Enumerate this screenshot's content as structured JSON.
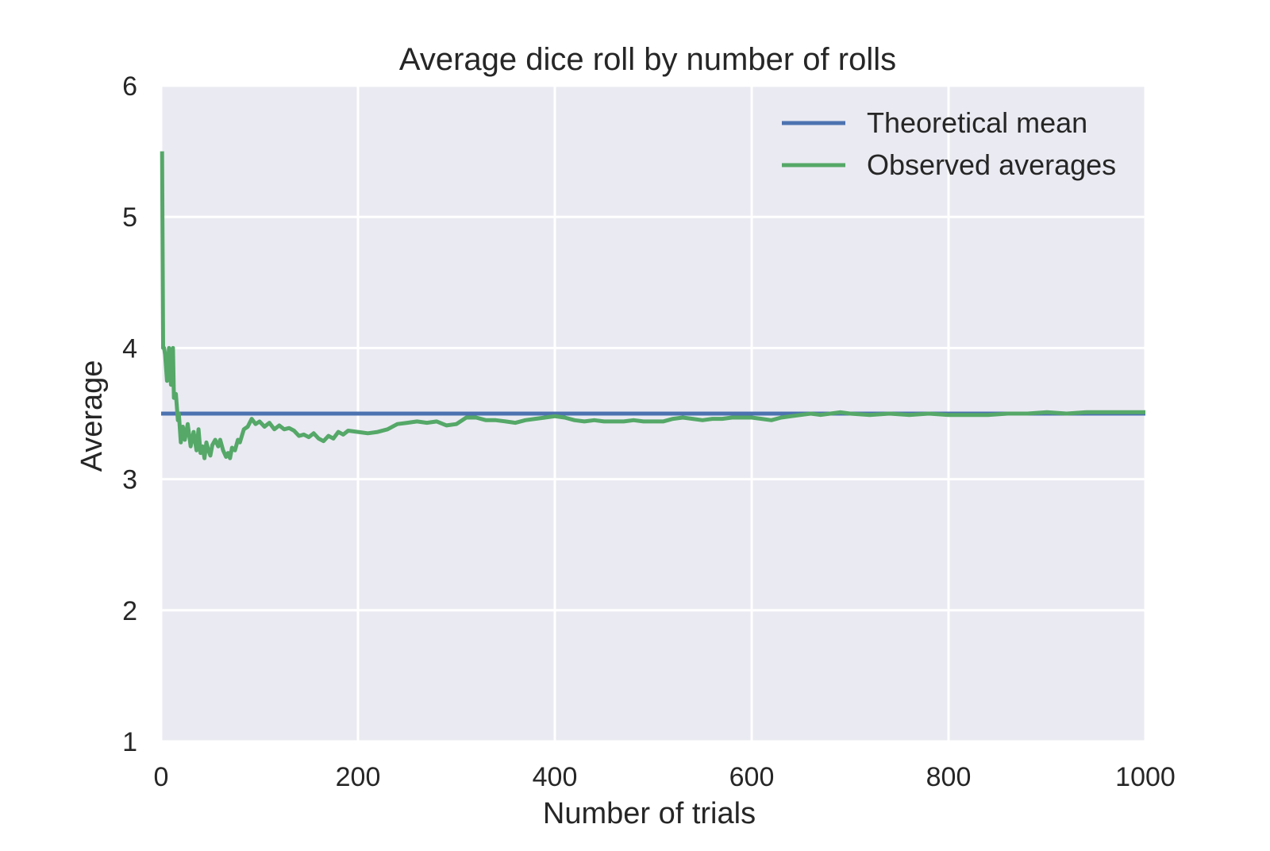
{
  "chart_data": {
    "type": "line",
    "title": "Average dice roll by number of rolls",
    "xlabel": "Number of trials",
    "ylabel": "Average",
    "xlim": [
      0,
      1000
    ],
    "ylim": [
      1,
      6
    ],
    "x_ticks": [
      "0",
      "200",
      "400",
      "600",
      "800",
      "1000"
    ],
    "y_ticks": [
      "1",
      "2",
      "3",
      "4",
      "5",
      "6"
    ],
    "grid": true,
    "legend_position": "top-right",
    "background_color": "#eaeaf2",
    "grid_color": "#ffffff",
    "series": [
      {
        "name": "Theoretical mean",
        "color": "#4c72b0",
        "x": [
          0,
          1000
        ],
        "y": [
          3.5,
          3.5
        ]
      },
      {
        "name": "Observed averages",
        "color": "#55a868",
        "x": [
          1,
          2,
          3,
          4,
          6,
          8,
          10,
          12,
          13,
          15,
          17,
          18,
          20,
          22,
          24,
          27,
          30,
          33,
          36,
          38,
          40,
          42,
          44,
          46,
          48,
          50,
          52,
          55,
          58,
          60,
          63,
          66,
          68,
          70,
          72,
          75,
          78,
          80,
          84,
          88,
          92,
          96,
          100,
          105,
          110,
          115,
          120,
          125,
          130,
          135,
          140,
          145,
          150,
          155,
          160,
          165,
          170,
          175,
          180,
          185,
          190,
          200,
          210,
          220,
          230,
          240,
          250,
          260,
          270,
          280,
          290,
          300,
          310,
          320,
          330,
          340,
          350,
          360,
          370,
          380,
          390,
          400,
          410,
          420,
          430,
          440,
          450,
          460,
          470,
          480,
          490,
          500,
          510,
          520,
          530,
          540,
          550,
          560,
          570,
          580,
          590,
          600,
          610,
          620,
          630,
          640,
          650,
          660,
          670,
          680,
          690,
          700,
          720,
          740,
          760,
          780,
          800,
          820,
          840,
          860,
          880,
          900,
          920,
          940,
          960,
          980,
          1000
        ],
        "y": [
          5.5,
          4.0,
          4.0,
          3.95,
          3.75,
          4.0,
          3.72,
          4.0,
          3.62,
          3.65,
          3.45,
          3.5,
          3.28,
          3.4,
          3.3,
          3.42,
          3.25,
          3.36,
          3.22,
          3.38,
          3.2,
          3.25,
          3.16,
          3.28,
          3.22,
          3.18,
          3.26,
          3.3,
          3.25,
          3.3,
          3.22,
          3.17,
          3.2,
          3.16,
          3.24,
          3.22,
          3.3,
          3.28,
          3.38,
          3.4,
          3.46,
          3.42,
          3.44,
          3.4,
          3.43,
          3.38,
          3.41,
          3.38,
          3.39,
          3.37,
          3.33,
          3.34,
          3.32,
          3.35,
          3.31,
          3.29,
          3.33,
          3.31,
          3.36,
          3.34,
          3.37,
          3.36,
          3.35,
          3.36,
          3.38,
          3.42,
          3.43,
          3.44,
          3.43,
          3.44,
          3.41,
          3.42,
          3.47,
          3.47,
          3.45,
          3.45,
          3.44,
          3.43,
          3.45,
          3.46,
          3.47,
          3.48,
          3.47,
          3.45,
          3.44,
          3.45,
          3.44,
          3.44,
          3.44,
          3.45,
          3.44,
          3.44,
          3.44,
          3.46,
          3.47,
          3.46,
          3.45,
          3.46,
          3.46,
          3.47,
          3.47,
          3.47,
          3.46,
          3.45,
          3.47,
          3.48,
          3.49,
          3.5,
          3.49,
          3.5,
          3.51,
          3.5,
          3.49,
          3.5,
          3.49,
          3.5,
          3.49,
          3.49,
          3.49,
          3.5,
          3.5,
          3.51,
          3.5,
          3.51,
          3.51,
          3.51,
          3.51
        ]
      }
    ]
  }
}
